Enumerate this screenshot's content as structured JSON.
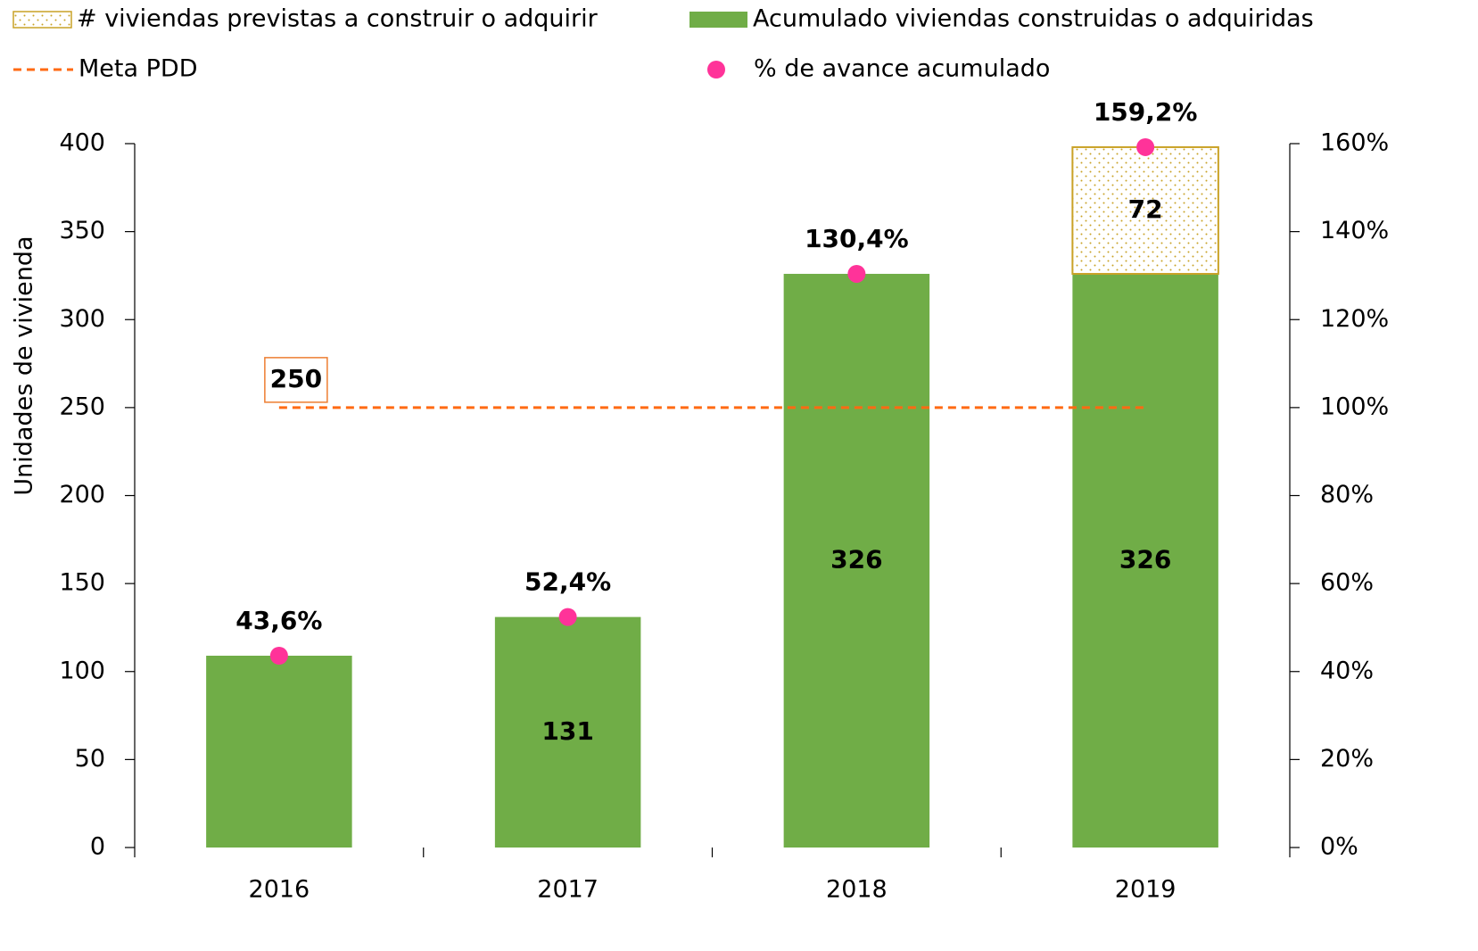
{
  "chart_data": {
    "type": "bar",
    "y_label": "Unidades de vivienda",
    "categories": [
      "2016",
      "2017",
      "2018",
      "2019"
    ],
    "series": [
      {
        "name": "Acumulado  viviendas construidas o adquiridas",
        "type": "bar",
        "color": "#70ad47",
        "values": [
          109,
          131,
          326,
          326
        ],
        "value_labels": [
          null,
          "131",
          "326",
          "326"
        ],
        "label_color": "#ffffff"
      },
      {
        "name": "# viviendas previstas a construir o adquirir",
        "type": "bar",
        "pattern": "dots",
        "color": "#c9a227",
        "values": [
          null,
          null,
          null,
          72
        ],
        "value_labels": [
          null,
          null,
          null,
          "72"
        ],
        "label_color": "#bf9000"
      },
      {
        "name": "Meta PDD",
        "type": "line",
        "dashed": true,
        "color": "#ff6a13",
        "values": [
          250,
          250,
          250,
          250
        ],
        "value_labels": [
          "250",
          null,
          null,
          null
        ],
        "label_color": "#ed7d31"
      },
      {
        "name": "% de avance acumulado",
        "type": "scatter",
        "axis": "y2",
        "color": "#ff3399",
        "values": [
          43.6,
          52.4,
          130.4,
          159.2
        ],
        "value_labels": [
          "43,6%",
          "52,4%",
          "130,4%",
          "159,2%"
        ],
        "label_color": "#ff3399"
      }
    ],
    "ylim": [
      0,
      400
    ],
    "yticks": [
      0,
      50,
      100,
      150,
      200,
      250,
      300,
      350,
      400
    ],
    "y2lim": [
      0,
      160
    ],
    "y2ticks": [
      {
        "value": 0,
        "label": "0%"
      },
      {
        "value": 20,
        "label": "20%"
      },
      {
        "value": 40,
        "label": "40%"
      },
      {
        "value": 60,
        "label": "60%"
      },
      {
        "value": 80,
        "label": "80%"
      },
      {
        "value": 100,
        "label": "100%"
      },
      {
        "value": 120,
        "label": "120%"
      },
      {
        "value": 140,
        "label": "140%"
      },
      {
        "value": 160,
        "label": "160%"
      }
    ],
    "legend": "top"
  }
}
